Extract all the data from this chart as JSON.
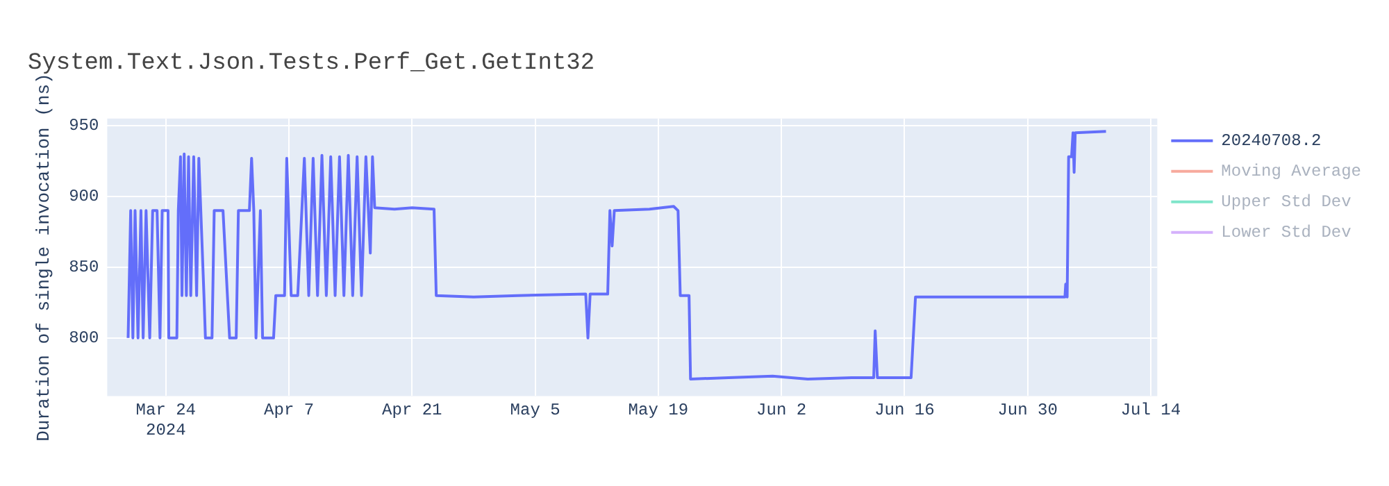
{
  "chart_data": {
    "type": "line",
    "title": "System.Text.Json.Tests.Perf_Get.GetInt32",
    "ylabel": "Duration of single invocation (ns)",
    "xlim": [
      "2024-03-17T08:00",
      "2024-07-14T18:00"
    ],
    "xticks": [
      {
        "value": "2024-03-24",
        "label": "Mar 24\n2024"
      },
      {
        "value": "2024-04-07",
        "label": "Apr 7"
      },
      {
        "value": "2024-04-21",
        "label": "Apr 21"
      },
      {
        "value": "2024-05-05",
        "label": "May 5"
      },
      {
        "value": "2024-05-19",
        "label": "May 19"
      },
      {
        "value": "2024-06-02",
        "label": "Jun 2"
      },
      {
        "value": "2024-06-16",
        "label": "Jun 16"
      },
      {
        "value": "2024-06-30",
        "label": "Jun 30"
      },
      {
        "value": "2024-07-14",
        "label": "Jul 14"
      }
    ],
    "ylim": [
      759,
      955
    ],
    "yticks": [
      800,
      850,
      900,
      950
    ],
    "grid": true,
    "legend": "top right",
    "marker": "none",
    "line_style": "solid",
    "series": [
      {
        "name": "20240708.2",
        "color": "#636efa",
        "x": [
          "2024-03-19T17:00",
          "2024-03-20T00:00",
          "2024-03-20T06:00",
          "2024-03-20T12:00",
          "2024-03-20T20:00",
          "2024-03-21T04:00",
          "2024-03-21T10:00",
          "2024-03-21T18:00",
          "2024-03-22T04:00",
          "2024-03-22T12:00",
          "2024-03-23T00:00",
          "2024-03-23T08:00",
          "2024-03-23T14:00",
          "2024-03-24T06:00",
          "2024-03-24T08:00",
          "2024-03-25T06:00",
          "2024-03-25T10:00",
          "2024-03-25T16:00",
          "2024-03-25T20:00",
          "2024-03-26T02:00",
          "2024-03-26T08:00",
          "2024-03-26T14:00",
          "2024-03-26T20:00",
          "2024-03-27T04:00",
          "2024-03-27T12:00",
          "2024-03-27T18:00",
          "2024-03-28T08:00",
          "2024-03-28T12:00",
          "2024-03-29T06:00",
          "2024-03-29T12:00",
          "2024-03-30T12:00",
          "2024-03-31T06:00",
          "2024-04-01T00:00",
          "2024-04-01T06:00",
          "2024-04-02T12:00",
          "2024-04-02T18:00",
          "2024-04-03T00:00",
          "2024-04-03T06:00",
          "2024-04-03T18:00",
          "2024-04-04T00:00",
          "2024-04-05T06:00",
          "2024-04-05T12:00",
          "2024-04-06T12:00",
          "2024-04-06T18:00",
          "2024-04-07T06:00",
          "2024-04-08T00:00",
          "2024-04-08T18:00",
          "2024-04-09T06:00",
          "2024-04-09T18:00",
          "2024-04-10T06:00",
          "2024-04-10T18:00",
          "2024-04-11T06:00",
          "2024-04-11T18:00",
          "2024-04-12T06:00",
          "2024-04-12T18:00",
          "2024-04-13T06:00",
          "2024-04-13T18:00",
          "2024-04-14T06:00",
          "2024-04-14T18:00",
          "2024-04-15T06:00",
          "2024-04-15T18:00",
          "2024-04-16T06:00",
          "2024-04-16T12:00",
          "2024-04-16T18:00",
          "2024-04-19T00:00",
          "2024-04-21T00:00",
          "2024-04-23T12:00",
          "2024-04-23T18:00",
          "2024-04-28T00:00",
          "2024-05-03T00:00",
          "2024-05-10T18:00",
          "2024-05-11T00:00",
          "2024-05-11T06:00",
          "2024-05-13T06:00",
          "2024-05-13T12:00",
          "2024-05-13T18:00",
          "2024-05-14T00:00",
          "2024-05-18T00:00",
          "2024-05-20T18:00",
          "2024-05-21T06:00",
          "2024-05-21T12:00",
          "2024-05-22T12:00",
          "2024-05-22T16:00",
          "2024-05-27T00:00",
          "2024-06-01T00:00",
          "2024-06-05T00:00",
          "2024-06-10T00:00",
          "2024-06-12T12:00",
          "2024-06-12T16:00",
          "2024-06-12T22:00",
          "2024-06-16T18:00",
          "2024-06-17T06:00",
          "2024-06-24T00:00",
          "2024-07-04T06:00",
          "2024-07-04T08:00",
          "2024-07-04T12:00",
          "2024-07-04T16:00",
          "2024-07-05T00:00",
          "2024-07-05T04:00",
          "2024-07-05T07:00",
          "2024-07-05T10:00",
          "2024-07-08T22:00"
        ],
        "values": [
          800,
          890,
          800,
          890,
          800,
          890,
          800,
          890,
          800,
          890,
          890,
          800,
          890,
          890,
          800,
          800,
          890,
          928,
          830,
          930,
          830,
          928,
          830,
          928,
          830,
          927,
          830,
          800,
          800,
          890,
          890,
          800,
          800,
          890,
          890,
          927,
          890,
          800,
          890,
          800,
          800,
          830,
          830,
          927,
          830,
          830,
          927,
          830,
          927,
          830,
          929,
          830,
          928,
          830,
          928,
          830,
          929,
          830,
          928,
          830,
          928,
          860,
          928,
          892,
          891,
          892,
          891,
          830,
          829,
          830,
          831,
          800,
          831,
          831,
          890,
          865,
          890,
          891,
          893,
          890,
          830,
          830,
          771,
          772,
          773,
          771,
          772,
          772,
          805,
          772,
          772,
          829,
          829,
          829,
          838,
          829,
          928,
          928,
          945,
          917,
          945,
          946
        ]
      },
      {
        "name": "Moving Average",
        "color": "#ef553b"
      },
      {
        "name": "Upper Std Dev",
        "color": "#00cc96"
      },
      {
        "name": "Lower Std Dev",
        "color": "#ab63fa"
      }
    ]
  }
}
